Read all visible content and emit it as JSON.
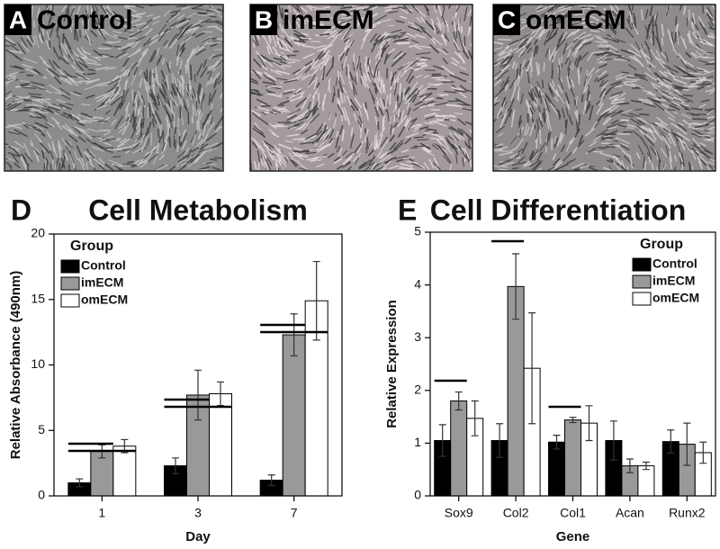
{
  "images": [
    {
      "letter": "A",
      "label": "Control"
    },
    {
      "letter": "B",
      "label": "imECM"
    },
    {
      "letter": "C",
      "label": "omECM"
    }
  ],
  "chart_data": [
    {
      "type": "bar",
      "letter": "D",
      "title": "Cell Metabolism",
      "y_label": "Relative Absorbance (490nm)",
      "x_label": "Day",
      "legend_title": "Group",
      "legend": "upper left",
      "categories": [
        "1",
        "3",
        "7"
      ],
      "series": [
        {
          "name": "Control",
          "color": "#000000",
          "values": [
            1.0,
            2.3,
            1.2
          ],
          "errors": [
            0.3,
            0.6,
            0.4
          ]
        },
        {
          "name": "imECM",
          "color": "#999999",
          "values": [
            3.4,
            7.7,
            12.3
          ],
          "errors": [
            0.5,
            1.9,
            1.6
          ]
        },
        {
          "name": "omECM",
          "color": "#ffffff",
          "values": [
            3.8,
            7.8,
            14.9
          ],
          "errors": [
            0.5,
            0.9,
            3.0
          ]
        }
      ],
      "ylim": [
        0,
        20
      ],
      "yticks": [
        0,
        5,
        10,
        15,
        20
      ]
    },
    {
      "type": "bar",
      "letter": "E",
      "title": "Cell Differentiation",
      "y_label": "Relative Expression",
      "x_label": "Gene",
      "legend_title": "Group",
      "legend": "upper right",
      "categories": [
        "Sox9",
        "Col2",
        "Col1",
        "Acan",
        "Runx2"
      ],
      "series": [
        {
          "name": "Control",
          "color": "#000000",
          "values": [
            1.05,
            1.05,
            1.02,
            1.05,
            1.03
          ],
          "errors": [
            0.3,
            0.32,
            0.13,
            0.37,
            0.22
          ]
        },
        {
          "name": "imECM",
          "color": "#999999",
          "values": [
            1.8,
            3.97,
            1.44,
            0.57,
            0.98
          ],
          "errors": [
            0.17,
            0.62,
            0.05,
            0.13,
            0.4
          ]
        },
        {
          "name": "omECM",
          "color": "#ffffff",
          "values": [
            1.47,
            2.42,
            1.38,
            0.57,
            0.82
          ],
          "errors": [
            0.33,
            1.05,
            0.33,
            0.07,
            0.2
          ]
        }
      ],
      "ylim": [
        0,
        5
      ],
      "yticks": [
        0,
        1,
        2,
        3,
        4,
        5
      ]
    }
  ]
}
